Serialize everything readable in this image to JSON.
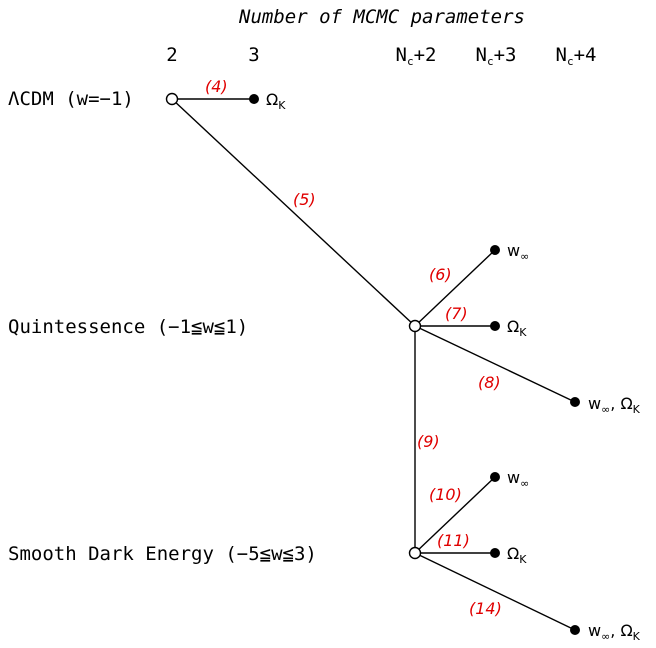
{
  "header": {
    "title": "Number of MCMC parameters",
    "columns": [
      {
        "main": "2",
        "sub": "",
        "tail": ""
      },
      {
        "main": "3",
        "sub": "",
        "tail": ""
      },
      {
        "main": "N",
        "sub": "c",
        "tail": "+2"
      },
      {
        "main": "N",
        "sub": "c",
        "tail": "+3"
      },
      {
        "main": "N",
        "sub": "c",
        "tail": "+4"
      }
    ]
  },
  "models": [
    {
      "label": "ΛCDM (w=−1)"
    },
    {
      "label": "Quintessence (−1≦w≦1)"
    },
    {
      "label": "Smooth Dark Energy (−5≦w≦3)"
    }
  ],
  "edges": [
    {
      "label": "(4)"
    },
    {
      "label": "(5)"
    },
    {
      "label": "(6)"
    },
    {
      "label": "(7)"
    },
    {
      "label": "(8)"
    },
    {
      "label": "(9)"
    },
    {
      "label": "(10)"
    },
    {
      "label": "(11)"
    },
    {
      "label": "(14)"
    }
  ],
  "leaves": [
    {
      "params": [
        {
          "main": "Ω",
          "sub": "K"
        }
      ]
    },
    {
      "params": [
        {
          "main": "w",
          "sub": "∞"
        }
      ]
    },
    {
      "params": [
        {
          "main": "Ω",
          "sub": "K"
        }
      ]
    },
    {
      "params": [
        {
          "main": "w",
          "sub": "∞"
        },
        {
          "main": "Ω",
          "sub": "K"
        }
      ]
    },
    {
      "params": [
        {
          "main": "w",
          "sub": "∞"
        }
      ]
    },
    {
      "params": [
        {
          "main": "Ω",
          "sub": "K"
        }
      ]
    },
    {
      "params": [
        {
          "main": "w",
          "sub": "∞"
        },
        {
          "main": "Ω",
          "sub": "K"
        }
      ]
    }
  ],
  "separator": ", "
}
